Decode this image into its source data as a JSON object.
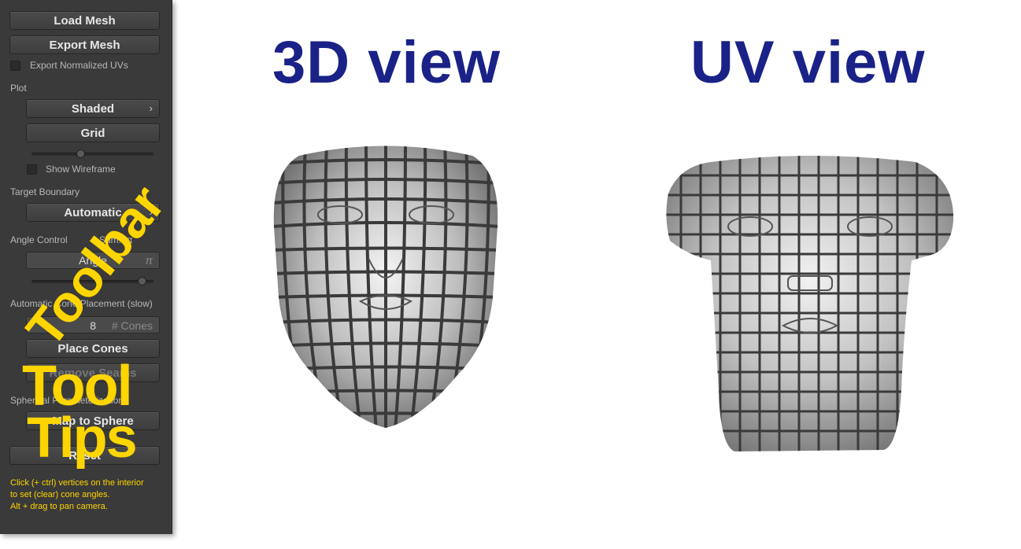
{
  "toolbar": {
    "load_mesh": "Load Mesh",
    "export_mesh": "Export Mesh",
    "export_normalized_uvs": "Export Normalized UVs",
    "plot_label": "Plot",
    "shaded": "Shaded",
    "grid": "Grid",
    "show_wireframe": "Show Wireframe",
    "target_boundary_label": "Target Boundary",
    "automatic": "Automatic",
    "angle_control_label": "Angle Control",
    "sum_label": "Sum:0π",
    "angle_field": "Angle",
    "pi_symbol": "π",
    "auto_cone_label": "Automatic Cone Placement (slow)",
    "cones_value": "8",
    "cones_placeholder": "# Cones",
    "place_cones": "Place Cones",
    "remove_seams": "Remove Seams",
    "spherical_label": "Spherical Parameterization",
    "map_to_sphere": "Map to Sphere",
    "reset": "Reset",
    "hint_line1": "Click (+ ctrl) vertices on the interior",
    "hint_line2": "to set (clear) cone angles.",
    "hint_line3": "Alt + drag to pan camera."
  },
  "overlays": {
    "toolbar_text": "Toolbar",
    "tool_text": "Tool",
    "tips_text": "Tips"
  },
  "views": {
    "view3d_title": "3D view",
    "uv_title": "UV view"
  },
  "colors": {
    "panel_bg": "#3a3a3a",
    "overlay_yellow": "#ffd500",
    "title_blue": "#1a2288",
    "hint_yellow": "#ffd400"
  }
}
